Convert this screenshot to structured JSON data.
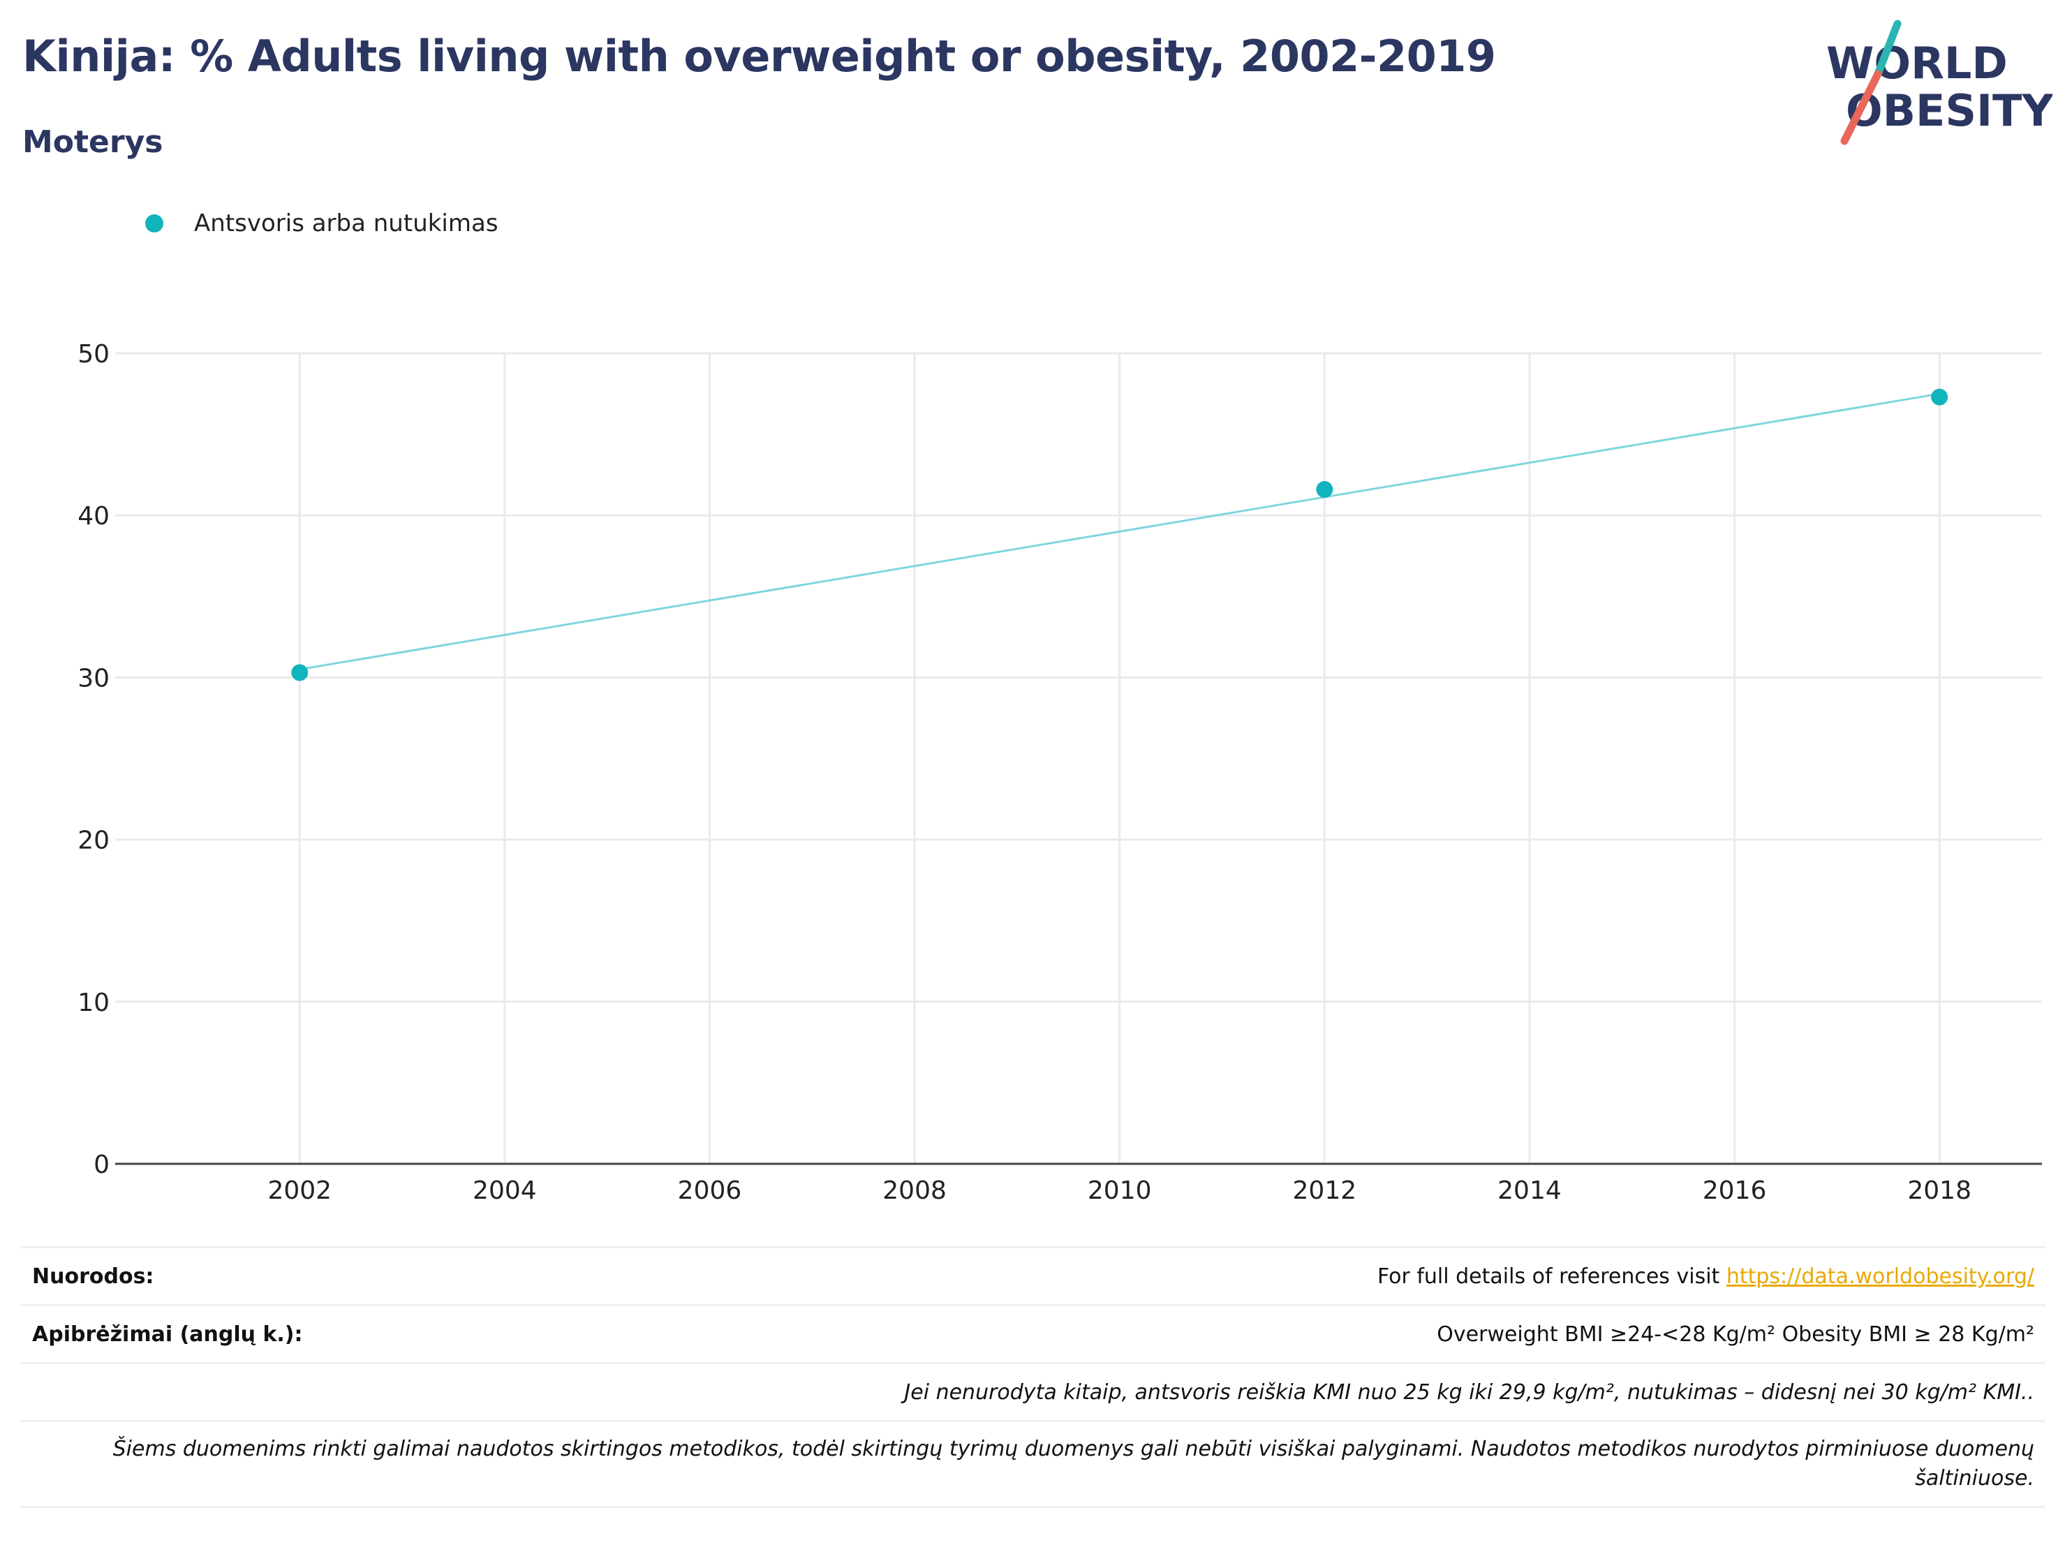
{
  "header": {
    "title": "Kinija: % Adults living with overweight or obesity, 2002-2019",
    "subtitle": "Moterys"
  },
  "logo": {
    "line1": "WORLD",
    "line2": "OBESITY"
  },
  "colors": {
    "series": "#11b3bc",
    "line": "#7fd6db",
    "title": "#2b3661",
    "link": "#e8a900",
    "logo_teal": "#2cb5b0",
    "logo_red": "#e8675a"
  },
  "chart_data": {
    "type": "line",
    "title": "Kinija: % Adults living with overweight or obesity, 2002-2019",
    "subtitle": "Moterys",
    "xlabel": "",
    "ylabel": "",
    "xlim": [
      2000.2,
      2019.0
    ],
    "ylim": [
      0,
      50
    ],
    "x_ticks": [
      2002,
      2004,
      2006,
      2008,
      2010,
      2012,
      2014,
      2016,
      2018
    ],
    "y_ticks": [
      0,
      10,
      20,
      30,
      40,
      50
    ],
    "grid": true,
    "legend_position": "top-left",
    "series": [
      {
        "name": "Antsvoris arba nutukimas",
        "points": [
          {
            "x": 2002,
            "y": 30.3
          },
          {
            "x": 2012,
            "y": 41.6
          },
          {
            "x": 2018,
            "y": 47.3
          }
        ],
        "trend": [
          {
            "x": 2002,
            "y": 30.5
          },
          {
            "x": 2018,
            "y": 47.5
          }
        ]
      }
    ]
  },
  "notes": {
    "references_label": "Nuorodos:",
    "references_text": "For full details of references visit",
    "references_link": "https://data.worldobesity.org/",
    "definitions_label": "Apibrėžimai (anglų k.):",
    "definitions_text": "Overweight BMI ≥24-<28 Kg/m² Obesity BMI ≥ 28 Kg/m²",
    "default_definition": "Jei nenurodyta kitaip, antsvoris reiškia KMI nuo 25 kg iki 29,9 kg/m², nutukimas – didesnį nei 30 kg/m² KMI..",
    "methodology": "Šiems duomenims rinkti galimai naudotos skirtingos metodikos, todėl skirtingų tyrimų duomenys gali nebūti visiškai palyginami. Naudotos metodikos nurodytos pirminiuose duomenų šaltiniuose."
  }
}
